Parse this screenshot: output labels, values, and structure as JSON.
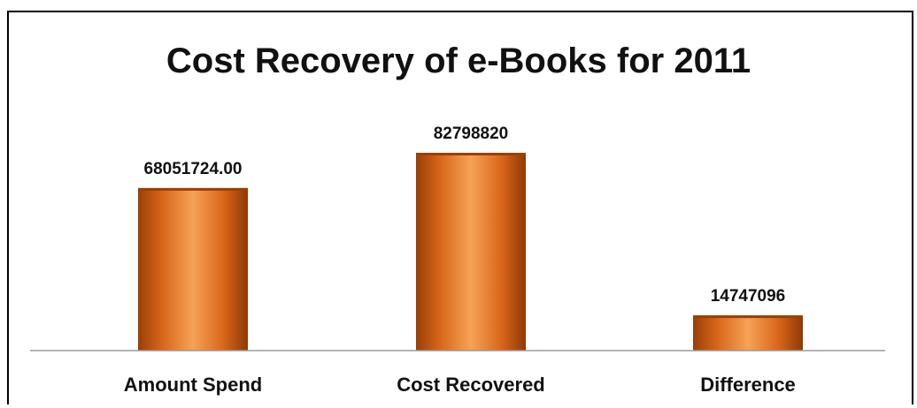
{
  "chart_data": {
    "type": "bar",
    "title": "Cost Recovery of e-Books for 2011",
    "categories": [
      "Amount Spend",
      "Cost Recovered",
      "Difference"
    ],
    "values": [
      68051724.0,
      82798820,
      14747096
    ],
    "data_labels": [
      "68051724.00",
      "82798820",
      "14747096"
    ],
    "xlabel": "",
    "ylabel": "",
    "ylim": [
      0,
      100000000
    ],
    "grid": false,
    "legend": "none",
    "colors": {
      "bar_main": "#e0701a",
      "bar_dark": "#9a3f06",
      "bar_light": "#f6a256",
      "baseline": "#9a9a9a"
    }
  }
}
